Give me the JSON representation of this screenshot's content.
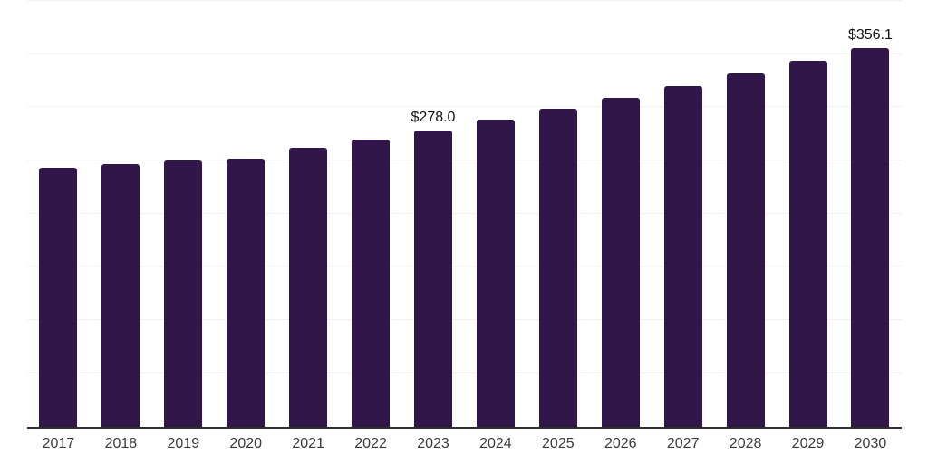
{
  "chart_data": {
    "type": "bar",
    "title": "",
    "xlabel": "",
    "ylabel": "",
    "categories": [
      "2017",
      "2018",
      "2019",
      "2020",
      "2021",
      "2022",
      "2023",
      "2024",
      "2025",
      "2026",
      "2027",
      "2028",
      "2029",
      "2030"
    ],
    "values": [
      243.3,
      246.5,
      250.0,
      252.0,
      262.0,
      269.5,
      278.0,
      288.0,
      298.3,
      309.0,
      320.1,
      331.6,
      343.6,
      356.1
    ],
    "labeled_points": [
      {
        "category": "2023",
        "label": "$278.0"
      },
      {
        "category": "2030",
        "label": "$356.1"
      }
    ],
    "value_prefix": "$",
    "ylim": [
      0,
      400
    ],
    "gridline_step": 50,
    "grid": true,
    "y_tick_labels_shown": false,
    "legend_position": "none",
    "colors": {
      "bar": "#31164a",
      "gridline": "#f1f1f1",
      "axis_line": "#2e2e2e",
      "tick_label": "#3a3a3a",
      "value_label": "#111111",
      "background": "#ffffff"
    }
  }
}
